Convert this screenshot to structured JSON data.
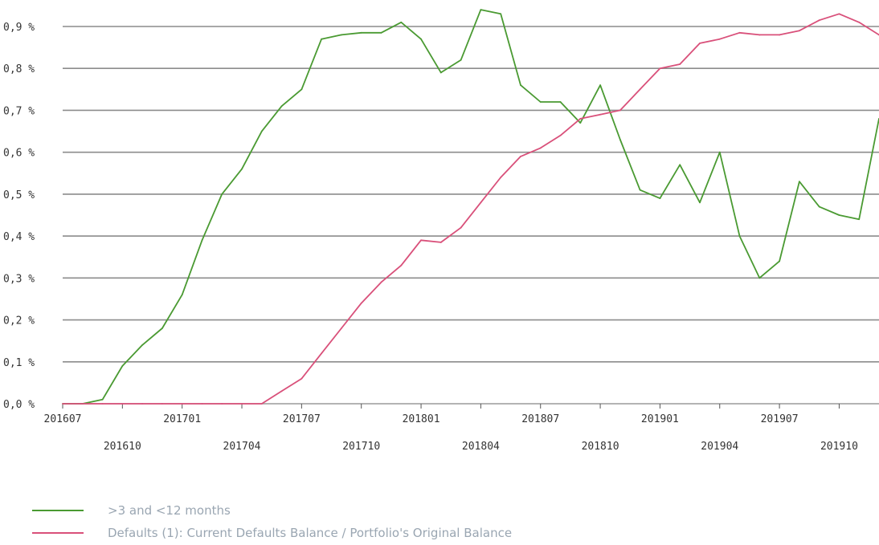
{
  "chart_data": {
    "type": "line",
    "title": "",
    "xlabel": "",
    "ylabel": "",
    "ylim": [
      0,
      0.9
    ],
    "grid": true,
    "legend_placement": "bottom-left",
    "y_ticks": [
      "0,0 %",
      "0,1 %",
      "0,2 %",
      "0,3 %",
      "0,4 %",
      "0,5 %",
      "0,6 %",
      "0,7 %",
      "0,8 %",
      "0,9 %"
    ],
    "x_ticks_upper": [
      "201607",
      "201701",
      "201707",
      "201801",
      "201807",
      "201901",
      "201907"
    ],
    "x_ticks_lower": [
      "201610",
      "201704",
      "201710",
      "201804",
      "201810",
      "201904",
      "201910"
    ],
    "x": [
      "201607",
      "201608",
      "201609",
      "201610",
      "201611",
      "201612",
      "201701",
      "201702",
      "201703",
      "201704",
      "201705",
      "201706",
      "201707",
      "201708",
      "201709",
      "201710",
      "201711",
      "201712",
      "201801",
      "201802",
      "201803",
      "201804",
      "201805",
      "201806",
      "201807",
      "201808",
      "201809",
      "201810",
      "201811",
      "201812",
      "201901",
      "201902",
      "201903",
      "201904",
      "201905",
      "201906",
      "201907",
      "201908",
      "201909",
      "201910",
      "201911",
      "201912"
    ],
    "series": [
      {
        "name": ">3 and <12 months",
        "color": "#4a9a32",
        "values": [
          0,
          0,
          0.01,
          0.09,
          0.14,
          0.18,
          0.26,
          0.39,
          0.5,
          0.56,
          0.65,
          0.71,
          0.75,
          0.87,
          0.88,
          0.885,
          0.885,
          0.91,
          0.87,
          0.79,
          0.82,
          0.94,
          0.93,
          0.76,
          0.72,
          0.72,
          0.67,
          0.76,
          0.63,
          0.51,
          0.49,
          0.57,
          0.48,
          0.6,
          0.4,
          0.3,
          0.34,
          0.53,
          0.47,
          0.45,
          0.44,
          0.68
        ]
      },
      {
        "name": "Defaults (1): Current Defaults Balance / Portfolio's Original Balance",
        "color": "#d9507a",
        "values": [
          0,
          0,
          0,
          0,
          0,
          0,
          0,
          0,
          0,
          0,
          0,
          0.03,
          0.06,
          0.12,
          0.18,
          0.24,
          0.29,
          0.33,
          0.39,
          0.385,
          0.42,
          0.48,
          0.54,
          0.59,
          0.61,
          0.64,
          0.68,
          0.69,
          0.7,
          0.75,
          0.8,
          0.81,
          0.86,
          0.87,
          0.885,
          0.88,
          0.88,
          0.89,
          0.915,
          0.93,
          0.91,
          0.88
        ]
      }
    ]
  },
  "legend": [
    {
      "label": ">3 and <12 months",
      "color": "#4a9a32"
    },
    {
      "label": "Defaults (1): Current Defaults Balance / Portfolio's Original Balance",
      "color": "#d9507a"
    }
  ]
}
